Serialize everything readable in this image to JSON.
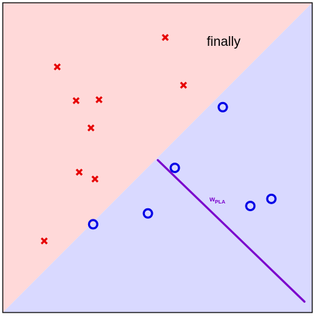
{
  "figure": {
    "caption": "finally",
    "weight_label": {
      "main": "w",
      "subscript": "PLA"
    }
  },
  "colors": {
    "positive_region": "#ffd9d9",
    "negative_region": "#d9d9ff",
    "positive_mark": "#e60000",
    "negative_mark": "#0000e6",
    "weight_vector": "#7a00cc",
    "frame": "#000000"
  },
  "points": {
    "crosses": [
      [
        0.525,
        0.888
      ],
      [
        0.176,
        0.793
      ],
      [
        0.584,
        0.734
      ],
      [
        0.311,
        0.687
      ],
      [
        0.237,
        0.684
      ],
      [
        0.285,
        0.596
      ],
      [
        0.247,
        0.453
      ],
      [
        0.298,
        0.431
      ],
      [
        0.134,
        0.231
      ]
    ],
    "circles": [
      [
        0.711,
        0.663
      ],
      [
        0.556,
        0.467
      ],
      [
        0.868,
        0.367
      ],
      [
        0.8,
        0.344
      ],
      [
        0.469,
        0.32
      ],
      [
        0.292,
        0.285
      ]
    ]
  },
  "weight_vector": {
    "from": [
      0.501,
      0.492
    ],
    "to": [
      0.975,
      0.035
    ]
  }
}
